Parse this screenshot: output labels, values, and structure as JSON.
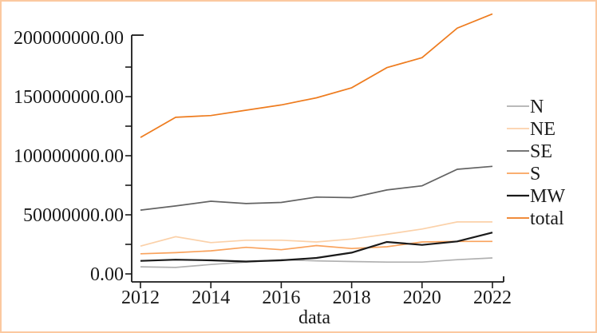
{
  "figure": {
    "border_color": "#fbc9a0",
    "background_color": "#ffffff",
    "text_color": "#1a1a1a"
  },
  "chart_data": {
    "type": "line",
    "title": "",
    "xlabel": "data",
    "ylabel": "",
    "grid": false,
    "legend_position": "right",
    "xlim": [
      2012,
      2022
    ],
    "ylim": [
      0,
      200000000
    ],
    "x": [
      2012,
      2013,
      2014,
      2015,
      2016,
      2017,
      2018,
      2019,
      2020,
      2021,
      2022
    ],
    "x_ticks": [
      {
        "value": 2012,
        "label": "2012"
      },
      {
        "value": 2014,
        "label": "2014"
      },
      {
        "value": 2016,
        "label": "2016"
      },
      {
        "value": 2018,
        "label": "2018"
      },
      {
        "value": 2020,
        "label": "2020"
      },
      {
        "value": 2022,
        "label": "2022"
      }
    ],
    "y_ticks": [
      {
        "value": 0,
        "label": "0.00"
      },
      {
        "value": 50000000,
        "label": "50000000.00"
      },
      {
        "value": 100000000,
        "label": "100000000.00"
      },
      {
        "value": 150000000,
        "label": "150000000.00"
      },
      {
        "value": 200000000,
        "label": "200000000.00"
      }
    ],
    "y_minor_ticks": [
      25000000,
      75000000,
      125000000,
      175000000
    ],
    "series": [
      {
        "name": "N",
        "color": "#b0b0b0",
        "values": [
          6000000,
          5500000,
          8000000,
          10000000,
          12000000,
          11000000,
          10500000,
          10000000,
          10000000,
          12000000,
          13500000
        ]
      },
      {
        "name": "NE",
        "color": "#fbd1a9",
        "values": [
          23500000,
          31500000,
          26500000,
          28500000,
          28500000,
          27000000,
          29500000,
          33500000,
          38000000,
          44000000,
          44000000
        ]
      },
      {
        "name": "SE",
        "color": "#636363",
        "values": [
          54000000,
          57500000,
          61500000,
          59500000,
          60500000,
          65000000,
          64500000,
          71000000,
          74500000,
          88500000,
          91000000
        ]
      },
      {
        "name": "S",
        "color": "#f9a25c",
        "values": [
          17000000,
          18000000,
          19500000,
          22500000,
          20500000,
          24000000,
          21500000,
          23000000,
          27000000,
          27500000,
          27500000
        ]
      },
      {
        "name": "MW",
        "color": "#1a1a1a",
        "values": [
          11000000,
          12000000,
          11500000,
          10500000,
          11500000,
          13500000,
          18000000,
          27000000,
          24500000,
          27500000,
          35000000
        ]
      },
      {
        "name": "total",
        "color": "#ee7c1f",
        "values": [
          115500000,
          132500000,
          134000000,
          138500000,
          143000000,
          149000000,
          157500000,
          174500000,
          183000000,
          208000000,
          220000000
        ]
      }
    ]
  }
}
